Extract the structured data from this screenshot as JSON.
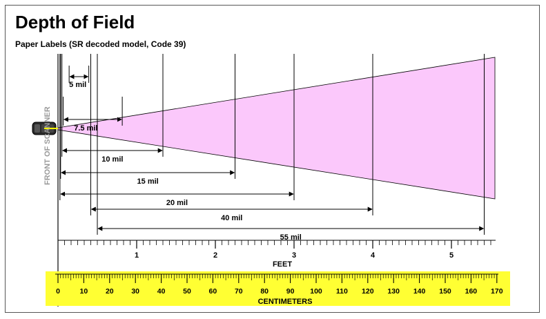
{
  "title": "Depth of Field",
  "subtitle": "Paper Labels (SR decoded model, Code 39)",
  "scanner_label": "FRONT OF SCANNER",
  "colors": {
    "beam": "#fbc8fb",
    "cm_band": "#ffff33",
    "scanner_light": "#ffff00"
  },
  "ranges": [
    {
      "label": "5 mil",
      "unit": "in",
      "min": 1.7,
      "max": 4.7
    },
    {
      "label": "7.5 mil",
      "unit": "in",
      "min": 0.8,
      "max": 9.8
    },
    {
      "label": "10 mil",
      "unit": "in",
      "min": 0.6,
      "max": 16.0
    },
    {
      "label": "15 mil",
      "unit": "in",
      "min": 0.4,
      "max": 27.0
    },
    {
      "label": "20 mil",
      "unit": "in",
      "min": 0.3,
      "max": 36.0
    },
    {
      "label": "40 mil",
      "unit": "in",
      "min": 5.0,
      "max": 48.0
    },
    {
      "label": "55 mil",
      "unit": "in",
      "min": 6.0,
      "max": 65.0
    }
  ],
  "feet_axis": {
    "label": "FEET",
    "ticks": [
      "1",
      "2",
      "3",
      "4",
      "5"
    ]
  },
  "cm_axis": {
    "label": "CENTIMETERS",
    "ticks": [
      "0",
      "10",
      "20",
      "30",
      "40",
      "50",
      "60",
      "70",
      "80",
      "90",
      "100",
      "110",
      "120",
      "130",
      "140",
      "150",
      "160",
      "170"
    ]
  }
}
